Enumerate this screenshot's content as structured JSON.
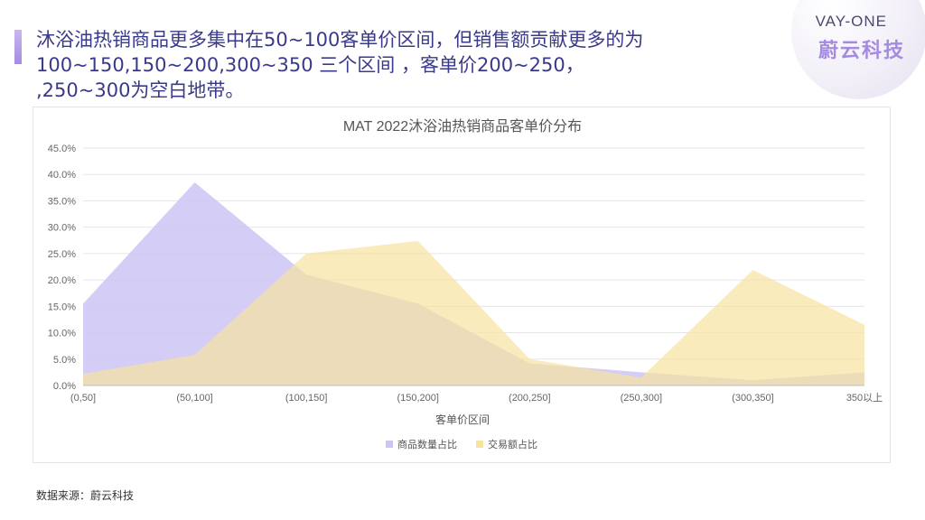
{
  "headline": {
    "line1": "沐浴油热销商品更多集中在50~100客单价区间，但销售额贡献更多的为",
    "line2": "100~150,150~200,300~350 三个区间 ，客单价200~250，",
    "line3": ",250~300为空白地带。"
  },
  "logo": {
    "en": "VAY-ONE",
    "cn": "蔚云科技"
  },
  "source": "数据来源：蔚云科技",
  "colors": {
    "accent": "#a58be0",
    "series_purple": "#ccc5f5",
    "series_yellow": "#f7e2a0",
    "headline": "#3a3a8c"
  },
  "chart_data": {
    "type": "area",
    "title": "MAT 2022沐浴油热销商品客单价分布",
    "xlabel": "客单价区间",
    "ylabel": "",
    "categories": [
      "(0,50]",
      "(50,100]",
      "(100,150]",
      "(150,200]",
      "(200,250]",
      "(250,300]",
      "(300,350]",
      "350以上"
    ],
    "ylim": [
      0,
      45
    ],
    "yticks": [
      "0.0%",
      "5.0%",
      "10.0%",
      "15.0%",
      "20.0%",
      "25.0%",
      "30.0%",
      "35.0%",
      "40.0%",
      "45.0%"
    ],
    "grid": true,
    "legend_position": "bottom",
    "series": [
      {
        "name": "商品数量占比",
        "color": "#ccc5f5",
        "values": [
          15.5,
          38.5,
          21.0,
          15.5,
          4.2,
          2.5,
          1.0,
          2.5
        ]
      },
      {
        "name": "交易额占比",
        "color": "#f7e2a0",
        "values": [
          2.2,
          5.8,
          25.0,
          27.4,
          5.0,
          1.5,
          21.9,
          11.5
        ]
      }
    ]
  }
}
